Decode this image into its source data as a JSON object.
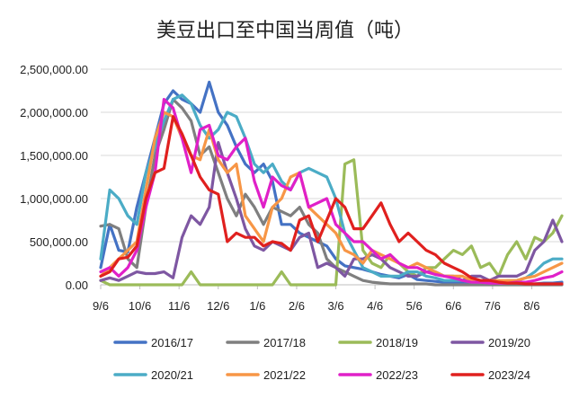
{
  "chart_data": {
    "type": "line",
    "title": "美豆出口至中国当周值（吨）",
    "xlabel": "",
    "ylabel": "",
    "ylim": [
      0,
      2500000
    ],
    "y_ticks": [
      0,
      500000,
      1000000,
      1500000,
      2000000,
      2500000
    ],
    "y_tick_labels": [
      "0.00",
      "500,000.00",
      "1,000,000.00",
      "1,500,000.00",
      "2,000,000.00",
      "2,500,000.00"
    ],
    "x_tick_labels": [
      "9/6",
      "10/6",
      "11/6",
      "12/6",
      "1/6",
      "2/6",
      "3/6",
      "4/6",
      "5/6",
      "6/6",
      "7/6",
      "8/6"
    ],
    "x_unit": "week index from 9/6 (0-51)",
    "grid": "horizontal",
    "legend_position": "bottom",
    "series": [
      {
        "name": "2016/17",
        "color": "#4472C4",
        "values": [
          200000,
          700000,
          400000,
          380000,
          900000,
          1300000,
          1700000,
          2100000,
          2250000,
          2150000,
          2100000,
          2000000,
          2350000,
          2000000,
          1850000,
          1600000,
          1400000,
          1300000,
          1400000,
          1200000,
          700000,
          700000,
          600000,
          550000,
          500000,
          450000,
          300000,
          220000,
          200000,
          180000,
          150000,
          120000,
          100000,
          80000,
          120000,
          60000,
          50000,
          40000,
          30000,
          30000,
          20000,
          20000,
          10000,
          10000,
          10000,
          10000,
          10000,
          10000,
          10000,
          20000,
          20000,
          30000
        ]
      },
      {
        "name": "2017/18",
        "color": "#7F7F7F",
        "values": [
          680000,
          700000,
          650000,
          300000,
          200000,
          900000,
          1500000,
          1800000,
          2150000,
          2050000,
          1900000,
          1500000,
          1600000,
          1300000,
          1000000,
          800000,
          1050000,
          900000,
          700000,
          900000,
          850000,
          800000,
          900000,
          700000,
          600000,
          300000,
          200000,
          150000,
          100000,
          50000,
          30000,
          20000,
          10000,
          10000,
          10000,
          10000,
          10000,
          0,
          0,
          0,
          0,
          0,
          0,
          0,
          0,
          0,
          0,
          0,
          0,
          0,
          0,
          0
        ]
      },
      {
        "name": "2018/19",
        "color": "#9BBB59",
        "values": [
          50000,
          0,
          0,
          0,
          0,
          0,
          0,
          0,
          0,
          0,
          150000,
          0,
          0,
          0,
          0,
          0,
          0,
          0,
          0,
          0,
          150000,
          0,
          0,
          0,
          0,
          0,
          0,
          1400000,
          1450000,
          400000,
          250000,
          200000,
          350000,
          250000,
          150000,
          100000,
          200000,
          200000,
          300000,
          400000,
          350000,
          450000,
          200000,
          250000,
          100000,
          350000,
          500000,
          300000,
          550000,
          500000,
          600000,
          800000
        ]
      },
      {
        "name": "2019/20",
        "color": "#7E57A2",
        "values": [
          50000,
          80000,
          50000,
          100000,
          150000,
          130000,
          130000,
          150000,
          80000,
          550000,
          800000,
          700000,
          900000,
          1650000,
          1300000,
          1000000,
          650000,
          450000,
          400000,
          500000,
          450000,
          400000,
          550000,
          600000,
          200000,
          250000,
          200000,
          100000,
          300000,
          300000,
          350000,
          300000,
          200000,
          150000,
          100000,
          100000,
          150000,
          150000,
          100000,
          100000,
          50000,
          100000,
          100000,
          50000,
          100000,
          100000,
          100000,
          150000,
          400000,
          500000,
          750000,
          500000
        ]
      },
      {
        "name": "2020/21",
        "color": "#4BACC6",
        "values": [
          300000,
          1100000,
          1000000,
          800000,
          700000,
          1300000,
          1600000,
          1900000,
          2150000,
          2200000,
          2100000,
          1850000,
          1700000,
          1800000,
          2000000,
          1950000,
          1700000,
          1400000,
          1300000,
          1400000,
          1200000,
          1100000,
          1300000,
          1350000,
          1300000,
          1250000,
          1000000,
          600000,
          400000,
          200000,
          150000,
          100000,
          100000,
          100000,
          150000,
          150000,
          100000,
          80000,
          50000,
          50000,
          50000,
          30000,
          30000,
          20000,
          30000,
          50000,
          50000,
          80000,
          150000,
          250000,
          300000,
          300000
        ]
      },
      {
        "name": "2021/22",
        "color": "#F79646",
        "values": [
          100000,
          200000,
          300000,
          400000,
          500000,
          1100000,
          1700000,
          2000000,
          1950000,
          1700000,
          1500000,
          1450000,
          1800000,
          1450000,
          1300000,
          1400000,
          800000,
          650000,
          500000,
          900000,
          1000000,
          1250000,
          1300000,
          900000,
          800000,
          700000,
          600000,
          400000,
          350000,
          250000,
          400000,
          350000,
          300000,
          250000,
          200000,
          250000,
          200000,
          150000,
          100000,
          100000,
          100000,
          50000,
          50000,
          50000,
          50000,
          50000,
          50000,
          80000,
          100000,
          150000,
          200000,
          250000
        ]
      },
      {
        "name": "2022/23",
        "color": "#E020C8",
        "values": [
          150000,
          200000,
          100000,
          200000,
          400000,
          900000,
          1300000,
          2150000,
          2050000,
          1700000,
          1300000,
          1800000,
          1850000,
          1500000,
          1450000,
          1600000,
          1700000,
          1200000,
          900000,
          1250000,
          1150000,
          1100000,
          1300000,
          900000,
          950000,
          1000000,
          700000,
          600000,
          500000,
          500000,
          400000,
          300000,
          350000,
          250000,
          200000,
          200000,
          150000,
          120000,
          100000,
          80000,
          50000,
          30000,
          30000,
          20000,
          20000,
          20000,
          30000,
          30000,
          50000,
          80000,
          100000,
          150000
        ]
      },
      {
        "name": "2023/24",
        "color": "#E0201E",
        "values": [
          100000,
          150000,
          300000,
          320000,
          450000,
          1000000,
          1300000,
          1350000,
          1950000,
          1750000,
          1500000,
          1250000,
          1100000,
          1050000,
          500000,
          600000,
          550000,
          550000,
          450000,
          500000,
          480000,
          400000,
          750000,
          800000,
          500000,
          750000,
          1000000,
          900000,
          650000,
          650000,
          800000,
          950000,
          700000,
          500000,
          600000,
          500000,
          400000,
          350000,
          250000,
          200000,
          150000,
          80000,
          50000,
          50000,
          30000,
          20000,
          20000,
          10000,
          10000,
          10000,
          10000,
          10000
        ]
      }
    ]
  }
}
